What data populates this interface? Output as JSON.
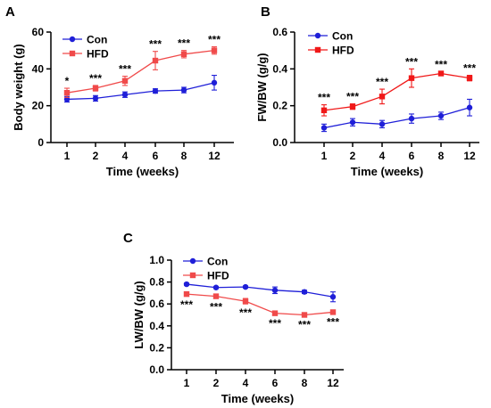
{
  "chart_data": [
    {
      "panel": "A",
      "type": "line",
      "x": [
        "1",
        "2",
        "4",
        "6",
        "8",
        "12"
      ],
      "xlabel": "Time (weeks)",
      "ylabel": "Body weight (g)",
      "ylim": [
        0,
        60
      ],
      "yticks": [
        "0",
        "20",
        "40",
        "60"
      ],
      "legend_position": "top-left",
      "series": [
        {
          "name": "Con",
          "color": "#1f1fd8",
          "marker": "circle",
          "values": [
            23.5,
            24,
            26,
            28,
            28.5,
            32.5
          ],
          "errors": [
            1.5,
            1.5,
            1.5,
            1.2,
            1.5,
            4
          ]
        },
        {
          "name": "HFD",
          "color": "#f04a4a",
          "marker": "square",
          "values": [
            27,
            29.5,
            33.5,
            44.5,
            48,
            50
          ],
          "errors": [
            2.5,
            1.5,
            2.5,
            5,
            2,
            2
          ]
        }
      ],
      "annotations": [
        "*",
        "***",
        "***",
        "***",
        "***",
        "***"
      ]
    },
    {
      "panel": "B",
      "type": "line",
      "x": [
        "1",
        "2",
        "4",
        "6",
        "8",
        "12"
      ],
      "xlabel": "Time (weeks)",
      "ylabel": "FW/BW (g/g)",
      "ylim": [
        0,
        0.6
      ],
      "yticks": [
        "0.0",
        "0.2",
        "0.4",
        "0.6"
      ],
      "legend_position": "top-left",
      "series": [
        {
          "name": "Con",
          "color": "#1f1fd8",
          "marker": "circle",
          "values": [
            0.08,
            0.11,
            0.1,
            0.13,
            0.145,
            0.19
          ],
          "errors": [
            0.02,
            0.02,
            0.02,
            0.025,
            0.02,
            0.045
          ]
        },
        {
          "name": "HFD",
          "color": "#f01818",
          "marker": "square",
          "values": [
            0.175,
            0.195,
            0.25,
            0.35,
            0.375,
            0.35
          ],
          "errors": [
            0.03,
            0.015,
            0.04,
            0.05,
            0.01,
            0.015
          ]
        }
      ],
      "annotations": [
        "***",
        "***",
        "***",
        "***",
        "***",
        "***"
      ]
    },
    {
      "panel": "C",
      "type": "line",
      "x": [
        "1",
        "2",
        "4",
        "6",
        "8",
        "12"
      ],
      "xlabel": "Time (weeks)",
      "ylabel": "LW/BW (g/g)",
      "ylim": [
        0,
        1.0
      ],
      "yticks": [
        "0.0",
        "0.2",
        "0.4",
        "0.6",
        "0.8",
        "1.0"
      ],
      "legend_position": "top-left",
      "series": [
        {
          "name": "Con",
          "color": "#1f1fd8",
          "marker": "circle",
          "values": [
            0.78,
            0.75,
            0.755,
            0.725,
            0.71,
            0.665
          ],
          "errors": [
            0.01,
            0.01,
            0.01,
            0.03,
            0.015,
            0.045
          ]
        },
        {
          "name": "HFD",
          "color": "#f04a4a",
          "marker": "square",
          "values": [
            0.69,
            0.67,
            0.625,
            0.515,
            0.5,
            0.525
          ],
          "errors": [
            0.015,
            0.015,
            0.025,
            0.01,
            0.01,
            0.01
          ]
        }
      ],
      "annotations": [
        "***",
        "***",
        "***",
        "***",
        "***",
        "***"
      ]
    }
  ]
}
